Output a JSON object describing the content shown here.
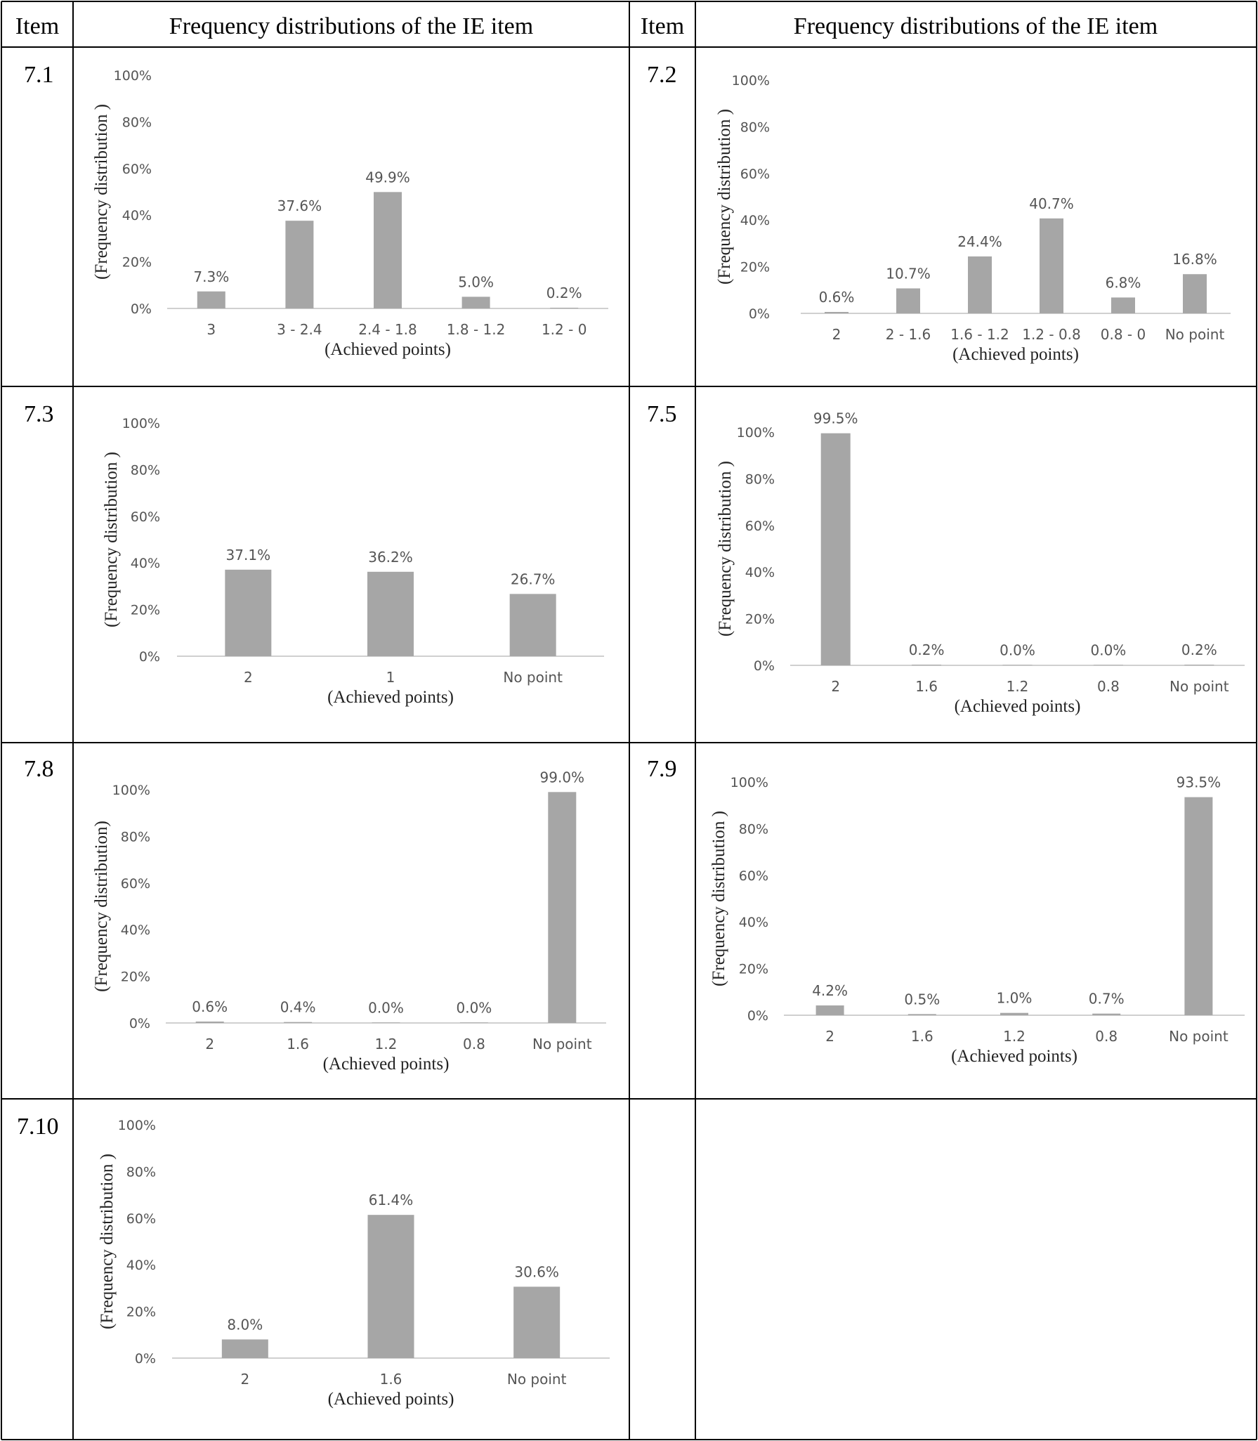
{
  "header": {
    "col1": "Item",
    "col2": "Frequency distributions of the IE item",
    "col3": "Item",
    "col4": "Frequency distributions of the IE item"
  },
  "y_ticks": [
    "100%",
    "80%",
    "60%",
    "40%",
    "20%",
    "0%"
  ],
  "chart_data": [
    {
      "item": "7.1",
      "type": "bar",
      "xlabel": "(Achieved points)",
      "ylabel": "(Frequency distribution )",
      "ylim": [
        0,
        100
      ],
      "categories": [
        "3",
        "3 - 2.4",
        "2.4 - 1.8",
        "1.8 - 1.2",
        "1.2 - 0"
      ],
      "values": [
        7.3,
        37.6,
        49.9,
        5.0,
        0.2
      ],
      "labels": [
        "7.3%",
        "37.6%",
        "49.9%",
        "5.0%",
        "0.2%"
      ]
    },
    {
      "item": "7.2",
      "type": "bar",
      "xlabel": "(Achieved points)",
      "ylabel": "(Frequency distribution )",
      "ylim": [
        0,
        100
      ],
      "categories": [
        "2",
        "2 - 1.6",
        "1.6 - 1.2",
        "1.2 - 0.8",
        "0.8 - 0",
        "No point"
      ],
      "values": [
        0.6,
        10.7,
        24.4,
        40.7,
        6.8,
        16.8
      ],
      "labels": [
        "0.6%",
        "10.7%",
        "24.4%",
        "40.7%",
        "6.8%",
        "16.8%"
      ]
    },
    {
      "item": "7.3",
      "type": "bar",
      "xlabel": "(Achieved points)",
      "ylabel": "(Frequency distribution )",
      "ylim": [
        0,
        100
      ],
      "categories": [
        "2",
        "1",
        "No point"
      ],
      "values": [
        37.1,
        36.2,
        26.7
      ],
      "labels": [
        "37.1%",
        "36.2%",
        "26.7%"
      ]
    },
    {
      "item": "7.5",
      "type": "bar",
      "xlabel": "(Achieved points)",
      "ylabel": "(Frequency distribution )",
      "ylim": [
        0,
        100
      ],
      "categories": [
        "2",
        "1.6",
        "1.2",
        "0.8",
        "No point"
      ],
      "values": [
        99.5,
        0.2,
        0.0,
        0.0,
        0.2
      ],
      "labels": [
        "99.5%",
        "0.2%",
        "0.0%",
        "0.0%",
        "0.2%"
      ]
    },
    {
      "item": "7.8",
      "type": "bar",
      "xlabel": "(Achieved points)",
      "ylabel": "(Frequency distribution)",
      "ylim": [
        0,
        100
      ],
      "categories": [
        "2",
        "1.6",
        "1.2",
        "0.8",
        "No point"
      ],
      "values": [
        0.6,
        0.4,
        0.0,
        0.0,
        99.0
      ],
      "labels": [
        "0.6%",
        "0.4%",
        "0.0%",
        "0.0%",
        "99.0%"
      ]
    },
    {
      "item": "7.9",
      "type": "bar",
      "xlabel": "(Achieved points)",
      "ylabel": "(Frequency distribution )",
      "ylim": [
        0,
        100
      ],
      "categories": [
        "2",
        "1.6",
        "1.2",
        "0.8",
        "No point"
      ],
      "values": [
        4.2,
        0.5,
        1.0,
        0.7,
        93.5
      ],
      "labels": [
        "4.2%",
        "0.5%",
        "1.0%",
        "0.7%",
        "93.5%"
      ]
    },
    {
      "item": "7.10",
      "type": "bar",
      "xlabel": "(Achieved points)",
      "ylabel": "(Frequency distribution )",
      "ylim": [
        0,
        100
      ],
      "categories": [
        "2",
        "1.6",
        "No point"
      ],
      "values": [
        8.0,
        61.4,
        30.6
      ],
      "labels": [
        "8.0%",
        "61.4%",
        "30.6%"
      ]
    }
  ]
}
